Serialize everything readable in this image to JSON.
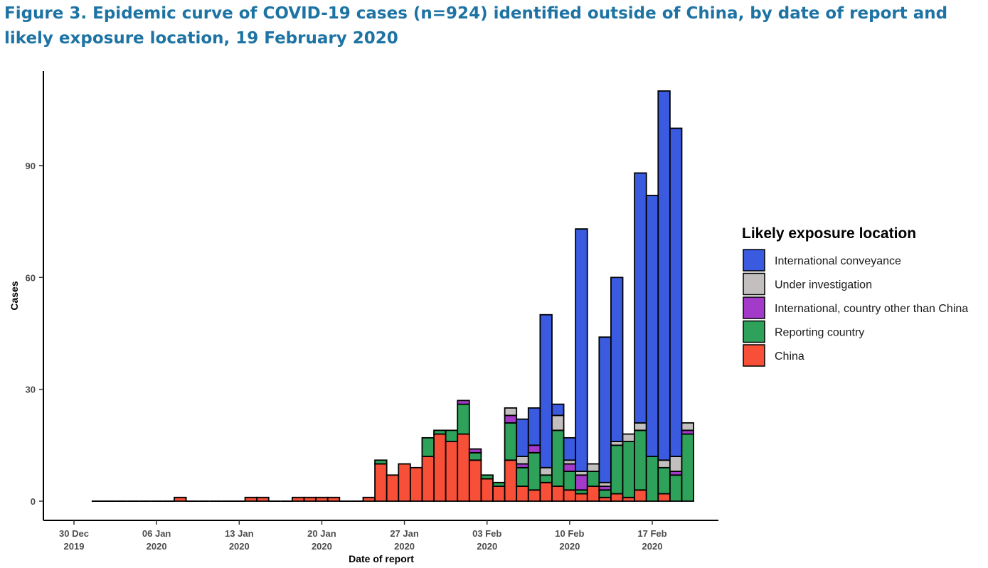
{
  "title": "Figure 3. Epidemic curve of COVID-19 cases (n=924) identified outside of China, by date of report and likely exposure location, 19 February 2020",
  "chart_data": {
    "type": "bar",
    "stacked": true,
    "xlabel": "Date of report",
    "ylabel": "Cases",
    "ylim": [
      0,
      110
    ],
    "y_ticks": [
      0,
      30,
      60,
      90
    ],
    "x_ticks": [
      {
        "date": "2019-12-30",
        "line1": "30 Dec",
        "line2": "2019"
      },
      {
        "date": "2020-01-06",
        "line1": "06 Jan",
        "line2": "2020"
      },
      {
        "date": "2020-01-13",
        "line1": "13 Jan",
        "line2": "2020"
      },
      {
        "date": "2020-01-20",
        "line1": "20 Jan",
        "line2": "2020"
      },
      {
        "date": "2020-01-27",
        "line1": "27 Jan",
        "line2": "2020"
      },
      {
        "date": "2020-02-03",
        "line1": "03 Feb",
        "line2": "2020"
      },
      {
        "date": "2020-02-10",
        "line1": "10 Feb",
        "line2": "2020"
      },
      {
        "date": "2020-02-17",
        "line1": "17 Feb",
        "line2": "2020"
      }
    ],
    "legend": {
      "title": "Likely exposure location",
      "position": "right"
    },
    "grid": false,
    "series": [
      {
        "key": "china",
        "name": "China",
        "color": "#f84f38"
      },
      {
        "key": "reporting",
        "name": "Reporting country",
        "color": "#2ea25a"
      },
      {
        "key": "intl_other",
        "name": "International, country other than China",
        "color": "#a33ac9"
      },
      {
        "key": "under_inv",
        "name": "Under investigation",
        "color": "#c3bfbf"
      },
      {
        "key": "conveyance",
        "name": "International conveyance",
        "color": "#3a5be0"
      }
    ],
    "legend_order": [
      "conveyance",
      "under_inv",
      "intl_other",
      "reporting",
      "china"
    ],
    "data": [
      {
        "date": "2020-01-01",
        "china": 0
      },
      {
        "date": "2020-01-02",
        "china": 0
      },
      {
        "date": "2020-01-03",
        "china": 0
      },
      {
        "date": "2020-01-04",
        "china": 0
      },
      {
        "date": "2020-01-05",
        "china": 0
      },
      {
        "date": "2020-01-06",
        "china": 0
      },
      {
        "date": "2020-01-07",
        "china": 0
      },
      {
        "date": "2020-01-08",
        "china": 1
      },
      {
        "date": "2020-01-09",
        "china": 0
      },
      {
        "date": "2020-01-10",
        "china": 0
      },
      {
        "date": "2020-01-11",
        "china": 0
      },
      {
        "date": "2020-01-12",
        "china": 0
      },
      {
        "date": "2020-01-13",
        "china": 0
      },
      {
        "date": "2020-01-14",
        "china": 1
      },
      {
        "date": "2020-01-15",
        "china": 1
      },
      {
        "date": "2020-01-16",
        "china": 0
      },
      {
        "date": "2020-01-17",
        "china": 0
      },
      {
        "date": "2020-01-18",
        "china": 1
      },
      {
        "date": "2020-01-19",
        "china": 1
      },
      {
        "date": "2020-01-20",
        "china": 1
      },
      {
        "date": "2020-01-21",
        "china": 1
      },
      {
        "date": "2020-01-22",
        "china": 0
      },
      {
        "date": "2020-01-23",
        "china": 0
      },
      {
        "date": "2020-01-24",
        "china": 1
      },
      {
        "date": "2020-01-25",
        "china": 10,
        "reporting": 1
      },
      {
        "date": "2020-01-26",
        "china": 7
      },
      {
        "date": "2020-01-27",
        "china": 10
      },
      {
        "date": "2020-01-28",
        "china": 9
      },
      {
        "date": "2020-01-29",
        "china": 12,
        "reporting": 5
      },
      {
        "date": "2020-01-30",
        "china": 18,
        "reporting": 1
      },
      {
        "date": "2020-01-31",
        "china": 16,
        "reporting": 3
      },
      {
        "date": "2020-02-01",
        "china": 18,
        "reporting": 8,
        "intl_other": 1
      },
      {
        "date": "2020-02-02",
        "china": 11,
        "reporting": 2,
        "intl_other": 1
      },
      {
        "date": "2020-02-03",
        "china": 6,
        "reporting": 1
      },
      {
        "date": "2020-02-04",
        "china": 4,
        "reporting": 1
      },
      {
        "date": "2020-02-05",
        "china": 11,
        "reporting": 10,
        "intl_other": 2,
        "under_inv": 2
      },
      {
        "date": "2020-02-06",
        "china": 4,
        "reporting": 5,
        "intl_other": 1,
        "under_inv": 2,
        "conveyance": 10
      },
      {
        "date": "2020-02-07",
        "china": 3,
        "reporting": 10,
        "intl_other": 2,
        "conveyance": 10
      },
      {
        "date": "2020-02-08",
        "china": 5,
        "reporting": 2,
        "under_inv": 2,
        "conveyance": 41
      },
      {
        "date": "2020-02-09",
        "china": 4,
        "reporting": 15,
        "under_inv": 4,
        "conveyance": 3
      },
      {
        "date": "2020-02-10",
        "china": 3,
        "reporting": 5,
        "intl_other": 2,
        "under_inv": 1,
        "conveyance": 6
      },
      {
        "date": "2020-02-11",
        "china": 2,
        "reporting": 1,
        "intl_other": 4,
        "under_inv": 1,
        "conveyance": 65
      },
      {
        "date": "2020-02-12",
        "china": 4,
        "reporting": 4,
        "under_inv": 2
      },
      {
        "date": "2020-02-13",
        "china": 1,
        "reporting": 2,
        "intl_other": 1,
        "under_inv": 1,
        "conveyance": 39
      },
      {
        "date": "2020-02-14",
        "china": 2,
        "reporting": 13,
        "under_inv": 1,
        "conveyance": 44
      },
      {
        "date": "2020-02-15",
        "china": 1,
        "reporting": 15,
        "under_inv": 2
      },
      {
        "date": "2020-02-16",
        "china": 3,
        "reporting": 16,
        "under_inv": 2,
        "conveyance": 67
      },
      {
        "date": "2020-02-17",
        "reporting": 12,
        "conveyance": 70
      },
      {
        "date": "2020-02-18",
        "china": 2,
        "reporting": 7,
        "under_inv": 2,
        "conveyance": 99
      },
      {
        "date": "2020-02-19",
        "reporting": 7,
        "intl_other": 1,
        "under_inv": 4,
        "conveyance": 88
      },
      {
        "date": "2020-02-20",
        "reporting": 18,
        "intl_other": 1,
        "under_inv": 2
      }
    ]
  }
}
